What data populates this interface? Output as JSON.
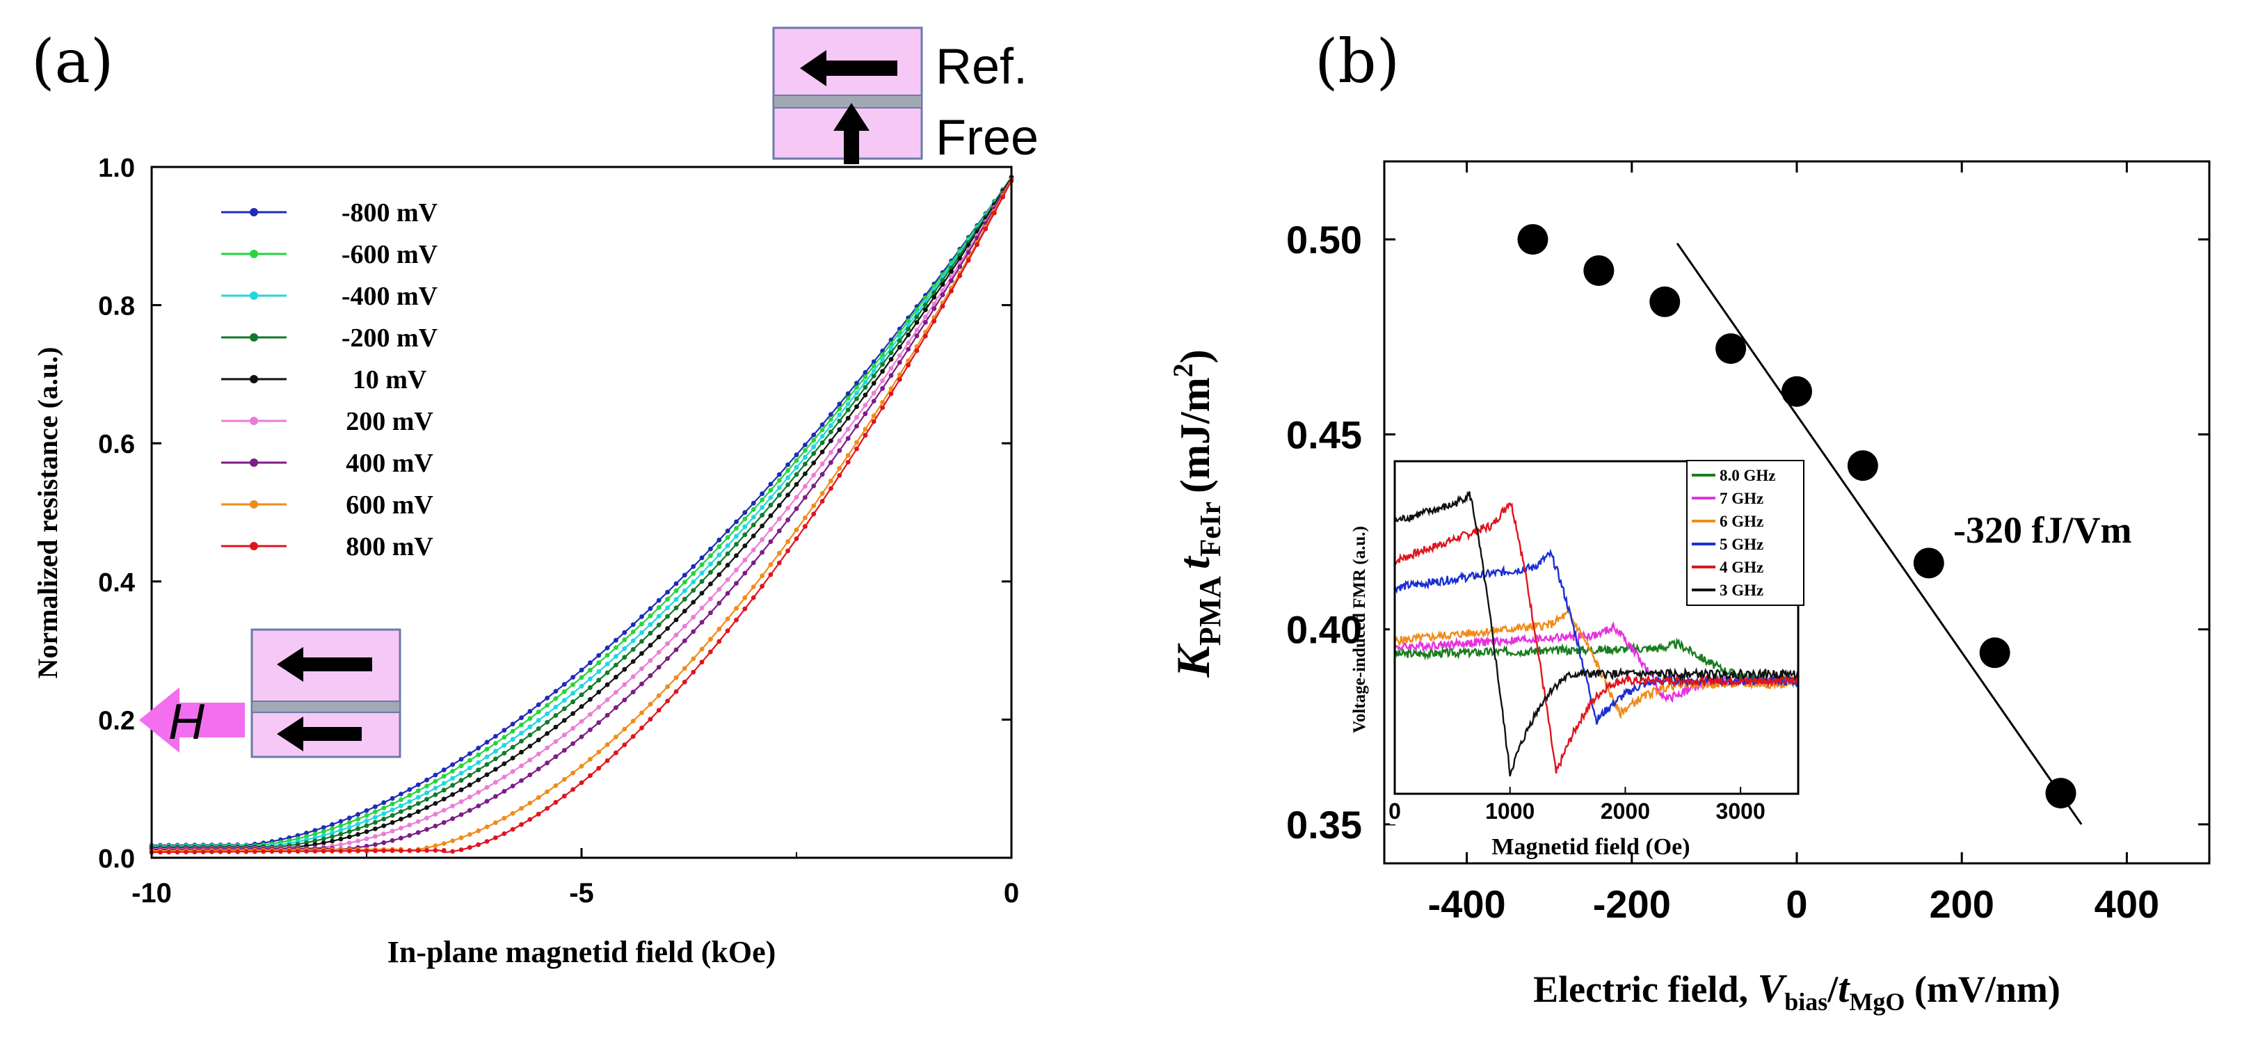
{
  "panel_a": {
    "label": "(a)",
    "diagram_top": {
      "line1": "Ref.",
      "line2": "Free"
    },
    "diagram_h": "H"
  },
  "panel_b": {
    "label": "(b)",
    "annotation": "-320 fJ/Vm",
    "ylabel": {
      "k": "K",
      "pma": "PMA",
      "t": "t",
      "feir": "FeIr",
      "unit": "(mJ/m",
      "sup": "2",
      "close": ")"
    },
    "xlabel": {
      "pre": "Electric field, ",
      "v": "V",
      "bias": "bias",
      "slash": "/",
      "t": "t",
      "mgo": "MgO",
      "unit": " (mV/nm)"
    }
  },
  "chart_data": [
    {
      "id": "a",
      "type": "line",
      "title": "",
      "xlabel": "In-plane magnetid field (kOe)",
      "ylabel": "Normalized resistance (a.u.)",
      "xlim": [
        -10,
        0
      ],
      "ylim": [
        0.0,
        1.0
      ],
      "xticks": [
        -10,
        -5,
        0
      ],
      "xtick_labels": [
        "-10",
        "-5",
        "0"
      ],
      "yticks": [
        0.0,
        0.2,
        0.4,
        0.6,
        0.8,
        1.0
      ],
      "ytick_labels": [
        "0.0",
        "0.2",
        "0.4",
        "0.6",
        "0.8",
        "1.0"
      ],
      "legend_position": "top-left",
      "series": [
        {
          "name": "-800 mV",
          "color": "#1f2bb8",
          "x0": -9.0,
          "y0": 0.018,
          "p": 1.65,
          "ye": 0.985
        },
        {
          "name": "-600 mV",
          "color": "#27d43c",
          "x0": -8.9,
          "y0": 0.017,
          "p": 1.67,
          "ye": 0.985
        },
        {
          "name": "-400 mV",
          "color": "#22d6e0",
          "x0": -8.8,
          "y0": 0.016,
          "p": 1.7,
          "ye": 0.985
        },
        {
          "name": "-200 mV",
          "color": "#127a2a",
          "x0": -8.7,
          "y0": 0.015,
          "p": 1.73,
          "ye": 0.985
        },
        {
          "name": "10 mV",
          "color": "#111111",
          "x0": -8.55,
          "y0": 0.014,
          "p": 1.77,
          "ye": 0.985
        },
        {
          "name": "200 mV",
          "color": "#ea7ed6",
          "x0": -8.3,
          "y0": 0.013,
          "p": 1.8,
          "ye": 0.983
        },
        {
          "name": "400 mV",
          "color": "#7d1c86",
          "x0": -7.9,
          "y0": 0.012,
          "p": 1.78,
          "ye": 0.983
        },
        {
          "name": "600 mV",
          "color": "#f08c1a",
          "x0": -7.1,
          "y0": 0.01,
          "p": 1.7,
          "ye": 0.982
        },
        {
          "name": "800 mV",
          "color": "#e0141e",
          "x0": -6.6,
          "y0": 0.008,
          "p": 1.6,
          "ye": 0.98
        }
      ]
    },
    {
      "id": "b",
      "type": "scatter",
      "title": "",
      "xlabel": "Electric field, Vbias/tMgO (mV/nm)",
      "ylabel": "KPMA tFeIr (mJ/m2)",
      "xlim": [
        -500,
        500
      ],
      "ylim": [
        0.34,
        0.52
      ],
      "xticks": [
        -400,
        -200,
        0,
        200,
        400
      ],
      "xtick_labels": [
        "-400",
        "-200",
        "0",
        "200",
        "400"
      ],
      "yticks": [
        0.35,
        0.4,
        0.45,
        0.5
      ],
      "ytick_labels": [
        "0.35",
        "0.40",
        "0.45",
        "0.50"
      ],
      "points": {
        "x": [
          -320,
          -240,
          -160,
          -80,
          0,
          80,
          160,
          240,
          320
        ],
        "y": [
          0.5,
          0.492,
          0.484,
          0.472,
          0.461,
          0.442,
          0.417,
          0.394,
          0.358
        ]
      },
      "fit_line": {
        "x": [
          -145,
          345
        ],
        "y": [
          0.499,
          0.35
        ],
        "slope_label": "-320 fJ/Vm"
      }
    },
    {
      "id": "b-inset",
      "type": "line",
      "title": "",
      "xlabel": "Magnetid field (Oe)",
      "ylabel": "Voltage-induced FMR (a.u.)",
      "xlim": [
        0,
        3500
      ],
      "xticks": [
        0,
        1000,
        2000,
        3000
      ],
      "xtick_labels": [
        "0",
        "1000",
        "2000",
        "3000"
      ],
      "legend_position": "top-right",
      "series": [
        {
          "name": "8.0 GHz",
          "color": "#1a7d1e",
          "base": 0.42,
          "hi": 0.45,
          "lo": 0.4,
          "rise": 2450,
          "fall": 2700,
          "end": 0.34
        },
        {
          "name": "7 GHz",
          "color": "#e830e0",
          "base": 0.44,
          "hi": 0.5,
          "lo": 0.28,
          "rise": 1900,
          "fall": 2350,
          "end": 0.34
        },
        {
          "name": "6 GHz",
          "color": "#f08c1a",
          "base": 0.46,
          "hi": 0.54,
          "lo": 0.24,
          "rise": 1500,
          "fall": 1950,
          "end": 0.33
        },
        {
          "name": "5 GHz",
          "color": "#1a2fd0",
          "base": 0.62,
          "hi": 0.72,
          "lo": 0.22,
          "rise": 1350,
          "fall": 1750,
          "end": 0.34
        },
        {
          "name": "4 GHz",
          "color": "#e0141e",
          "base": 0.7,
          "hi": 0.88,
          "lo": 0.06,
          "rise": 1000,
          "fall": 1400,
          "end": 0.34
        },
        {
          "name": "3 GHz",
          "color": "#111111",
          "base": 0.82,
          "hi": 0.9,
          "lo": 0.06,
          "rise": 650,
          "fall": 1000,
          "end": 0.36
        }
      ]
    }
  ]
}
